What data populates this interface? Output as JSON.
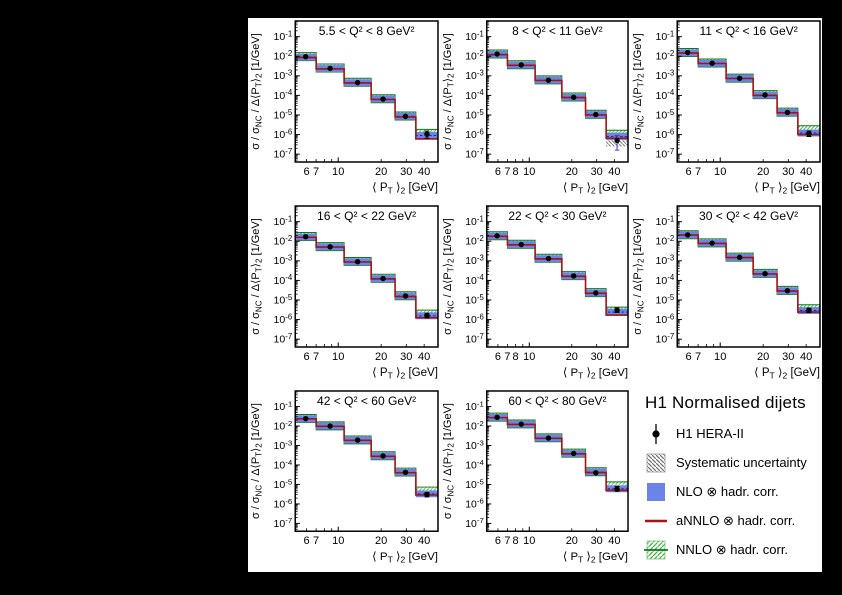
{
  "colors": {
    "data": "#000000",
    "nlo_fill": "#6b84e8",
    "nlo_edge": "#1f2a8a",
    "annlo_line": "#a51313",
    "nnlo_line": "#0e7a12",
    "nnlo_hatch": "#3fae3f",
    "sys_hatch": "#6e6e6e",
    "err_blue": "#3a49c8",
    "frame": "#000000",
    "canvas_bg": "#ffffff",
    "page_bg": "#000000"
  },
  "legend": {
    "title": "H1 Normalised dijets",
    "items": [
      {
        "label": "H1 HERA-II",
        "marker": "data-point"
      },
      {
        "label": "Systematic uncertainty",
        "marker": "gray-hatched-box"
      },
      {
        "label": "NLO ⊗ hadr. corr.",
        "marker": "blue-filled-box"
      },
      {
        "label": "aNNLO ⊗ hadr. corr.",
        "marker": "red-line"
      },
      {
        "label": "NNLO ⊗ hadr. corr.",
        "marker": "green-hatched-box-line"
      }
    ]
  },
  "chart_data": {
    "type": "step-histogram-grid",
    "title": "H1 Normalised dijets",
    "grid": {
      "rows": 3,
      "cols": 3,
      "legend_cell": 9
    },
    "x": {
      "label": "⟨ P~T~ ⟩~2~ [GeV]",
      "scale": "log",
      "range": [
        5,
        50
      ],
      "bin_edges": [
        5,
        7,
        11,
        17,
        25,
        35,
        50
      ],
      "minor_ticks": [
        5,
        6,
        7,
        8,
        9,
        20,
        30,
        40,
        50
      ],
      "major_ticks": [
        10
      ]
    },
    "y": {
      "label": "σ / σ~NC~ / Δ⟨P~T~⟩~2~ [1/GeV]",
      "scale": "log",
      "range_exp": [
        -7.4,
        -0.2
      ],
      "tick_exps": [
        -1,
        -2,
        -3,
        -4,
        -5,
        -6,
        -7
      ]
    },
    "xtick_sets": {
      "a": [
        [
          6,
          "6"
        ],
        [
          7,
          "7"
        ],
        [
          10,
          "10"
        ],
        [
          20,
          "20"
        ],
        [
          30,
          "30"
        ],
        [
          40,
          "40"
        ]
      ],
      "b": [
        [
          6,
          "6"
        ],
        [
          7,
          "7"
        ],
        [
          8,
          "8"
        ],
        [
          10,
          "10"
        ],
        [
          20,
          "20"
        ],
        [
          30,
          "30"
        ],
        [
          40,
          "40"
        ]
      ]
    },
    "series_names": [
      "H1 HERA-II",
      "NLO ⊗ hadr. corr.",
      "aNNLO ⊗ hadr. corr.",
      "NNLO ⊗ hadr. corr."
    ],
    "panels": [
      {
        "title": "5.5 < Q² < 8 GeV²",
        "xticks": "a",
        "data": [
          0.0095,
          0.0024,
          0.00045,
          6.5e-05,
          8.5e-06,
          1.05e-06
        ],
        "nlo": [
          0.009,
          0.00235,
          0.00045,
          6.5e-05,
          8.5e-06,
          9e-07
        ],
        "annlo": [
          0.0085,
          0.00225,
          0.000435,
          6.2e-05,
          8e-06,
          6e-07
        ],
        "nnlo": [
          0.0096,
          0.0025,
          0.00047,
          6.8e-05,
          8.9e-06,
          1.15e-06
        ],
        "err_last": [
          6.5e-07,
          1.5e-06
        ],
        "sys_last": [
          7e-07,
          1.2e-06
        ]
      },
      {
        "title": "8 < Q² < 11 GeV²",
        "xticks": "b",
        "data": [
          0.013,
          0.0036,
          0.0006,
          8e-05,
          1.05e-05,
          5e-07
        ],
        "nlo": [
          0.0125,
          0.00355,
          0.0006,
          8e-05,
          1.05e-05,
          8e-07
        ],
        "annlo": [
          0.012,
          0.00345,
          0.00058,
          7.7e-05,
          1e-05,
          6.5e-07
        ],
        "nnlo": [
          0.013,
          0.00365,
          0.00062,
          8.3e-05,
          1.1e-05,
          1.05e-06
        ],
        "err_last": [
          1.6e-07,
          9e-07
        ],
        "sys_last": [
          2.5e-07,
          1.3e-06
        ],
        "err_blue": true
      },
      {
        "title": "11 < Q² < 16 GeV²",
        "xticks": "a",
        "data": [
          0.0155,
          0.0044,
          0.00075,
          0.000105,
          1.35e-05,
          1.1e-06
        ],
        "nlo": [
          0.015,
          0.00435,
          0.00075,
          0.000105,
          1.35e-05,
          1.2e-06
        ],
        "annlo": [
          0.0145,
          0.00425,
          0.00073,
          0.0001,
          1.3e-05,
          1e-06
        ],
        "nnlo": [
          0.0155,
          0.0045,
          0.00077,
          0.00011,
          1.4e-05,
          1.75e-06
        ],
        "err_last": [
          8e-07,
          1.5e-06
        ],
        "sys_last": [
          9e-07,
          1.5e-06
        ]
      },
      {
        "title": "16 < Q² < 22 GeV²",
        "xticks": "a",
        "data": [
          0.017,
          0.0052,
          0.0009,
          0.000125,
          1.6e-05,
          1.6e-06
        ],
        "nlo": [
          0.0165,
          0.00515,
          0.0009,
          0.000125,
          1.6e-05,
          1.55e-06
        ],
        "annlo": [
          0.016,
          0.005,
          0.00087,
          0.00012,
          1.5e-05,
          1.25e-06
        ],
        "nnlo": [
          0.0175,
          0.00535,
          0.00093,
          0.00013,
          1.65e-05,
          1.9e-06
        ],
        "err_last": [
          1.2e-06,
          2.1e-06
        ],
        "sys_last": [
          1.2e-06,
          2e-06
        ]
      },
      {
        "title": "22 < Q² < 30 GeV²",
        "xticks": "b",
        "data": [
          0.019,
          0.0068,
          0.0013,
          0.00017,
          2.3e-05,
          3e-06
        ],
        "nlo": [
          0.0185,
          0.0068,
          0.0013,
          0.00017,
          2.3e-05,
          2.4e-06
        ],
        "annlo": [
          0.018,
          0.0066,
          0.00126,
          0.000163,
          2.2e-05,
          1.7e-06
        ],
        "nnlo": [
          0.019,
          0.007,
          0.00134,
          0.000176,
          2.4e-05,
          2.7e-06
        ],
        "err_last": [
          2.3e-06,
          3.9e-06
        ],
        "sys_last": [
          1.9e-06,
          3.1e-06
        ]
      },
      {
        "title": "30 < Q² < 42 GeV²",
        "xticks": "a",
        "data": [
          0.021,
          0.008,
          0.0015,
          0.00022,
          3e-05,
          3e-06
        ],
        "nlo": [
          0.021,
          0.008,
          0.0015,
          0.00022,
          3e-05,
          2.9e-06
        ],
        "annlo": [
          0.0205,
          0.0078,
          0.00146,
          0.000212,
          2.85e-05,
          2.4e-06
        ],
        "nnlo": [
          0.0215,
          0.0082,
          0.00155,
          0.000228,
          3.1e-05,
          3.6e-06
        ],
        "err_last": [
          2.3e-06,
          3.8e-06
        ],
        "sys_last": [
          2.3e-06,
          3.6e-06
        ]
      },
      {
        "title": "42 < Q² < 60 GeV²",
        "xticks": "a",
        "data": [
          0.024,
          0.01,
          0.0019,
          0.00029,
          4.2e-05,
          3e-06
        ],
        "nlo": [
          0.024,
          0.01,
          0.0019,
          0.00029,
          4.2e-05,
          3.3e-06
        ],
        "annlo": [
          0.0235,
          0.0097,
          0.00185,
          0.00028,
          4e-05,
          2.9e-06
        ],
        "nnlo": [
          0.0245,
          0.0102,
          0.00195,
          0.0003,
          4.35e-05,
          4.6e-06
        ],
        "err_last": [
          2.3e-06,
          3.9e-06
        ],
        "sys_last": [
          2.5e-06,
          4.2e-06
        ]
      },
      {
        "title": "60 < Q² < 80 GeV²",
        "xticks": "b",
        "data": [
          0.028,
          0.0125,
          0.0024,
          0.00039,
          4e-05,
          6e-06
        ],
        "nlo": [
          0.0275,
          0.0125,
          0.0024,
          0.00039,
          4.3e-05,
          6e-06
        ],
        "annlo": [
          0.027,
          0.0122,
          0.00233,
          0.000375,
          4.1e-05,
          5e-06
        ],
        "nnlo": [
          0.0285,
          0.0128,
          0.00248,
          0.000405,
          4.5e-05,
          8.5e-06
        ],
        "err_last": [
          4.5e-06,
          8e-06
        ],
        "sys_last": [
          4.5e-06,
          7.5e-06
        ]
      }
    ]
  }
}
